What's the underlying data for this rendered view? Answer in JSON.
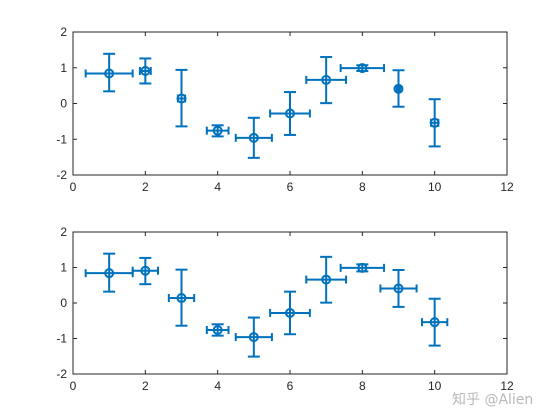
{
  "watermark": "知乎 @Alien",
  "colors": {
    "series": "#0072BD",
    "axes": "#262626",
    "background": "#ffffff"
  },
  "chart_data": [
    {
      "type": "scatter",
      "subtype": "errorbar-both",
      "marker": "circle",
      "xlim": [
        0,
        12
      ],
      "ylim": [
        -2,
        2
      ],
      "xticks": [
        0,
        2,
        4,
        6,
        8,
        10,
        12
      ],
      "yticks": [
        -2,
        -1,
        0,
        1,
        2
      ],
      "grid": false,
      "legend": "none",
      "points": [
        {
          "x": 1,
          "y": 0.84,
          "yneg": 0.5,
          "ypos": 0.55,
          "xneg": 0.65,
          "xpos": 0.65
        },
        {
          "x": 2,
          "y": 0.91,
          "yneg": 0.35,
          "ypos": 0.35,
          "xneg": 0.15,
          "xpos": 0.15
        },
        {
          "x": 3,
          "y": 0.14,
          "yneg": 0.78,
          "ypos": 0.8,
          "xneg": 0.1,
          "xpos": 0.1
        },
        {
          "x": 4,
          "y": -0.76,
          "yneg": 0.16,
          "ypos": 0.15,
          "xneg": 0.3,
          "xpos": 0.3
        },
        {
          "x": 5,
          "y": -0.96,
          "yneg": 0.56,
          "ypos": 0.56,
          "xneg": 0.5,
          "xpos": 0.5
        },
        {
          "x": 6,
          "y": -0.28,
          "yneg": 0.6,
          "ypos": 0.6,
          "xneg": 0.55,
          "xpos": 0.55
        },
        {
          "x": 7,
          "y": 0.66,
          "yneg": 0.65,
          "ypos": 0.64,
          "xneg": 0.55,
          "xpos": 0.55
        },
        {
          "x": 8,
          "y": 0.99,
          "yneg": 0.08,
          "ypos": 0.08,
          "xneg": 0.6,
          "xpos": 0.6
        },
        {
          "x": 9,
          "y": 0.41,
          "yneg": 0.5,
          "ypos": 0.52,
          "xneg": 0.05,
          "xpos": 0.05
        },
        {
          "x": 10,
          "y": -0.54,
          "yneg": 0.66,
          "ypos": 0.66,
          "xneg": 0.1,
          "xpos": 0.1
        }
      ]
    },
    {
      "type": "scatter",
      "subtype": "errorbar-both",
      "marker": "circle",
      "xlim": [
        0,
        12
      ],
      "ylim": [
        -2,
        2
      ],
      "xticks": [
        0,
        2,
        4,
        6,
        8,
        10,
        12
      ],
      "yticks": [
        -2,
        -1,
        0,
        1,
        2
      ],
      "grid": false,
      "legend": "none",
      "points": [
        {
          "x": 1,
          "y": 0.84,
          "yneg": 0.52,
          "ypos": 0.55,
          "xneg": 0.65,
          "xpos": 0.65
        },
        {
          "x": 2,
          "y": 0.91,
          "yneg": 0.38,
          "ypos": 0.36,
          "xneg": 0.35,
          "xpos": 0.35
        },
        {
          "x": 3,
          "y": 0.14,
          "yneg": 0.78,
          "ypos": 0.8,
          "xneg": 0.35,
          "xpos": 0.35
        },
        {
          "x": 4,
          "y": -0.76,
          "yneg": 0.16,
          "ypos": 0.16,
          "xneg": 0.3,
          "xpos": 0.3
        },
        {
          "x": 5,
          "y": -0.96,
          "yneg": 0.55,
          "ypos": 0.55,
          "xneg": 0.5,
          "xpos": 0.5
        },
        {
          "x": 6,
          "y": -0.28,
          "yneg": 0.6,
          "ypos": 0.6,
          "xneg": 0.55,
          "xpos": 0.55
        },
        {
          "x": 7,
          "y": 0.66,
          "yneg": 0.65,
          "ypos": 0.64,
          "xneg": 0.55,
          "xpos": 0.55
        },
        {
          "x": 8,
          "y": 0.99,
          "yneg": 0.1,
          "ypos": 0.1,
          "xneg": 0.6,
          "xpos": 0.6
        },
        {
          "x": 9,
          "y": 0.41,
          "yneg": 0.52,
          "ypos": 0.52,
          "xneg": 0.5,
          "xpos": 0.5
        },
        {
          "x": 10,
          "y": -0.54,
          "yneg": 0.66,
          "ypos": 0.66,
          "xneg": 0.35,
          "xpos": 0.35
        }
      ]
    }
  ]
}
